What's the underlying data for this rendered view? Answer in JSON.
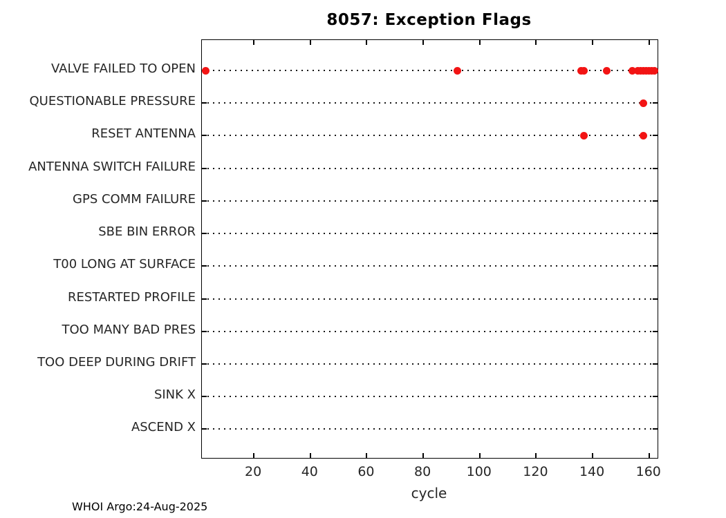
{
  "chart_data": {
    "type": "scatter",
    "title": "8057: Exception Flags",
    "xlabel": "cycle",
    "footer": "WHOI Argo:24-Aug-2025",
    "x_ticks": [
      20,
      40,
      60,
      80,
      100,
      120,
      140,
      160
    ],
    "xlim": [
      1.6,
      163
    ],
    "grid": "horizontal dotted line per category",
    "legend": "none",
    "marker_color": "#f21414",
    "axis_text_color": "#262626",
    "categories": [
      "VALVE FAILED TO OPEN",
      "QUESTIONABLE PRESSURE",
      "RESET ANTENNA",
      "ANTENNA SWITCH FAILURE",
      "GPS COMM FAILURE",
      "SBE BIN ERROR",
      "T00 LONG AT SURFACE",
      "RESTARTED PROFILE",
      "TOO MANY BAD PRES",
      "TOO DEEP DURING DRIFT",
      "SINK X",
      "ASCEND X"
    ],
    "series": [
      {
        "name": "VALVE FAILED TO OPEN",
        "cycles": [
          3,
          92,
          136,
          137,
          145,
          154,
          156,
          157,
          158,
          159,
          160,
          161,
          162
        ]
      },
      {
        "name": "QUESTIONABLE PRESSURE",
        "cycles": [
          158
        ]
      },
      {
        "name": "RESET ANTENNA",
        "cycles": [
          137,
          158
        ]
      },
      {
        "name": "ANTENNA SWITCH FAILURE",
        "cycles": []
      },
      {
        "name": "GPS COMM FAILURE",
        "cycles": []
      },
      {
        "name": "SBE BIN ERROR",
        "cycles": []
      },
      {
        "name": "T00 LONG AT SURFACE",
        "cycles": []
      },
      {
        "name": "RESTARTED PROFILE",
        "cycles": []
      },
      {
        "name": "TOO MANY BAD PRES",
        "cycles": []
      },
      {
        "name": "TOO DEEP DURING DRIFT",
        "cycles": []
      },
      {
        "name": "SINK X",
        "cycles": []
      },
      {
        "name": "ASCEND X",
        "cycles": []
      }
    ]
  }
}
